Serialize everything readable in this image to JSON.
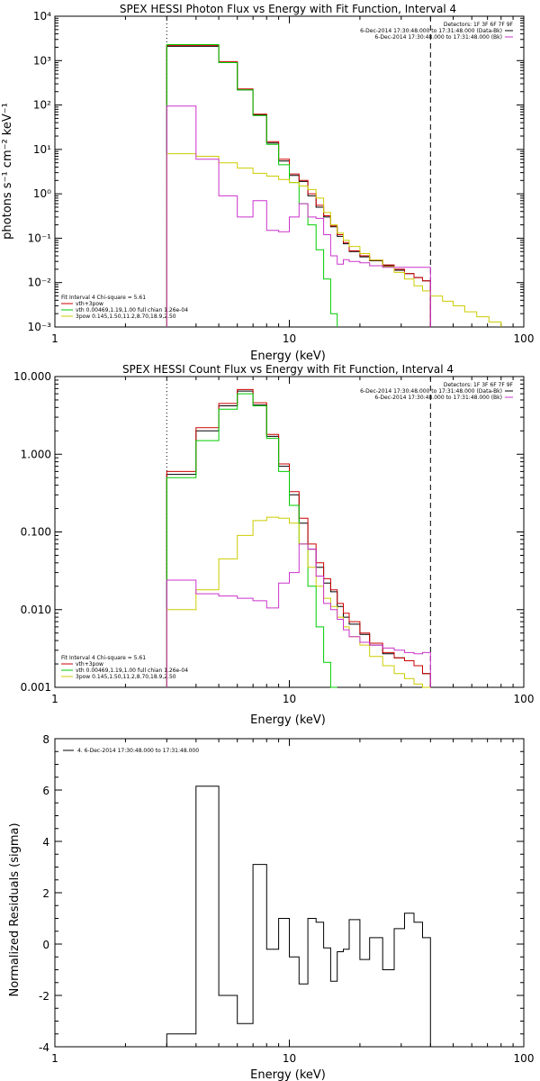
{
  "chart_data": [
    {
      "type": "line",
      "title": "SPEX HESSI Photon Flux vs Energy with Fit Function, Interval 4",
      "xlabel": "Energy (keV)",
      "ylabel": "photons s⁻¹ cm⁻² keV⁻¹",
      "xlog": true,
      "ylog": true,
      "xlim": [
        1,
        100
      ],
      "ylim": [
        0.001,
        10000
      ],
      "xticks": [
        "1",
        "10",
        "100"
      ],
      "yticks": [
        "10⁻³",
        "10⁻²",
        "10⁻¹",
        "10⁰",
        "10¹",
        "10²",
        "10³",
        "10⁴"
      ],
      "top_legend": {
        "detectors": "Detectors: 1F 3F 6F 7F 9F",
        "lines": [
          "6-Dec-2014 17:30:48.000 to 17:31:48.000 (Data-Bk)",
          "6-Dec-2014 17:30:48.000 to 17:31:48.000 (Bk)"
        ],
        "colors": [
          "#000000",
          "#cc33cc"
        ]
      },
      "bottom_legend": {
        "header": "Fit Interval  4    Chi-square = 5.61",
        "lines": [
          "vth+3pow",
          "vth 0.00469,1.19,1.00   full chian 1.26e-04",
          "3pow 0.145,1.50,11.2,8.70,18.9,2.50"
        ],
        "colors": [
          "#cc0000",
          "#00cc00",
          "#cccc00"
        ]
      },
      "vlines": [
        {
          "x": 3,
          "style": "dotted"
        },
        {
          "x": 40,
          "style": "dashed"
        }
      ],
      "edges": [
        3,
        4,
        5,
        6,
        7,
        8,
        9,
        10,
        11,
        12,
        13,
        14,
        15,
        16,
        17,
        18,
        20,
        22,
        25,
        28,
        31,
        34,
        37,
        40,
        45,
        50,
        56,
        63,
        71,
        80
      ],
      "series": [
        {
          "color": "#000000",
          "values": [
            2100,
            2100,
            900,
            220,
            60,
            14,
            5.5,
            2.6,
            1.9,
            0.9,
            0.5,
            0.3,
            0.18,
            0.11,
            0.075,
            0.05,
            0.038,
            0.031,
            0.024,
            0.019,
            0.016,
            0.013,
            0.011
          ]
        },
        {
          "color": "#cc0000",
          "values": [
            2200,
            2200,
            950,
            230,
            62,
            15,
            6,
            2.8,
            2.0,
            1.0,
            0.55,
            0.32,
            0.19,
            0.12,
            0.08,
            0.052,
            0.04,
            0.032,
            0.025,
            0.02,
            0.016,
            0.013,
            0.011
          ]
        },
        {
          "color": "#00cc00",
          "values": [
            2300,
            2300,
            900,
            220,
            58,
            13,
            4.5,
            1.8,
            0.6,
            0.2,
            0.055,
            0.012,
            0.002
          ]
        },
        {
          "color": "#cccc00",
          "values": [
            8,
            7,
            5,
            3.8,
            2.9,
            2.5,
            2.1,
            1.8,
            1.5,
            1.25,
            0.8,
            0.38,
            0.2,
            0.13,
            0.09,
            0.065,
            0.045,
            0.032,
            0.023,
            0.017,
            0.012,
            0.0085,
            0.0065,
            0.005,
            0.0038,
            0.003,
            0.0022,
            0.0017,
            0.0013
          ]
        },
        {
          "color": "#cc33cc",
          "values": [
            95,
            6,
            0.9,
            0.3,
            0.7,
            0.15,
            0.14,
            0.3,
            0.6,
            0.3,
            0.28,
            0.12,
            0.04,
            0.026,
            0.033,
            0.03,
            0.028,
            0.024,
            0.022,
            0.022,
            0.022,
            0.022,
            0.022
          ]
        }
      ]
    },
    {
      "type": "line",
      "title": "SPEX HESSI Count Flux vs Energy with Fit Function, Interval 4",
      "xlabel": "Energy (keV)",
      "ylabel": "",
      "xlog": true,
      "ylog": true,
      "xlim": [
        1,
        100
      ],
      "ylim": [
        0.001,
        10
      ],
      "xticks": [
        "1",
        "10",
        "100"
      ],
      "yticks": [
        "0.001",
        "0.010",
        "0.100",
        "1.000",
        "10.000"
      ],
      "top_legend": {
        "detectors": "Detectors: 1F 3F 6F 7F 9F",
        "lines": [
          "6-Dec-2014 17:30:48.000 to 17:31:48.000 (Data-Bk)",
          "6-Dec-2014 17:30:48.000 to 17:31:48.000 (Bk)"
        ],
        "colors": [
          "#000000",
          "#cc33cc"
        ]
      },
      "bottom_legend": {
        "header": "Fit Interval  4    Chi-square = 5.61",
        "lines": [
          "vth+3pow",
          "vth 0.00469,1.19,1.00   full chian 1.26e-04",
          "3pow 0.145,1.50,11.2,8.70,18.9,2.50"
        ],
        "colors": [
          "#cc0000",
          "#00cc00",
          "#cccc00"
        ]
      },
      "vlines": [
        {
          "x": 3,
          "style": "dotted"
        },
        {
          "x": 40,
          "style": "dashed"
        }
      ],
      "edges": [
        3,
        4,
        5,
        6,
        7,
        8,
        9,
        10,
        11,
        12,
        13,
        14,
        15,
        16,
        17,
        18,
        20,
        22,
        25,
        28,
        31,
        34,
        37,
        40
      ],
      "series": [
        {
          "color": "#000000",
          "values": [
            0.55,
            2.0,
            4.2,
            6.5,
            4.3,
            1.7,
            0.7,
            0.3,
            0.13,
            0.06,
            0.035,
            0.022,
            0.017,
            0.011,
            0.008,
            0.0065,
            0.0048,
            0.0035,
            0.0027,
            0.0024,
            0.0022,
            0.0019,
            0.0015
          ]
        },
        {
          "color": "#cc0000",
          "values": [
            0.6,
            2.2,
            4.5,
            6.8,
            4.6,
            1.8,
            0.75,
            0.33,
            0.15,
            0.07,
            0.04,
            0.025,
            0.018,
            0.012,
            0.009,
            0.007,
            0.005,
            0.0037,
            0.0028,
            0.0024,
            0.0022,
            0.0019,
            0.0015
          ]
        },
        {
          "color": "#00cc00",
          "values": [
            0.5,
            1.5,
            3.8,
            6.0,
            4.2,
            1.6,
            0.6,
            0.22,
            0.07,
            0.02,
            0.006,
            0.0021,
            0.0009
          ]
        },
        {
          "color": "#cccc00",
          "values": [
            0.01,
            0.018,
            0.045,
            0.09,
            0.14,
            0.155,
            0.15,
            0.13,
            0.07,
            0.035,
            0.02,
            0.014,
            0.011,
            0.008,
            0.006,
            0.0045,
            0.0035,
            0.0025,
            0.0019,
            0.0015,
            0.0013,
            0.0011,
            0.0009
          ]
        },
        {
          "color": "#cc33cc",
          "values": [
            0.024,
            0.016,
            0.015,
            0.014,
            0.013,
            0.0105,
            0.022,
            0.03,
            0.07,
            0.06,
            0.027,
            0.012,
            0.01,
            0.0075,
            0.0055,
            0.0045,
            0.0038,
            0.0035,
            0.0032,
            0.003,
            0.0028,
            0.0027,
            0.0028
          ]
        }
      ]
    },
    {
      "type": "line",
      "title": "",
      "xlabel": "Energy (keV)",
      "ylabel": "Normalized Residuals (sigma)",
      "xlog": true,
      "ylog": false,
      "xlim": [
        1,
        100
      ],
      "ylim": [
        -4,
        8
      ],
      "xticks": [
        "1",
        "10",
        "100"
      ],
      "yticks": [
        "-4",
        "-2",
        "0",
        "2",
        "4",
        "6",
        "8"
      ],
      "top_legend": {
        "lines": [
          "4.  6-Dec-2014 17:30:48.000 to 17:31:48.000"
        ],
        "colors": [
          "#000000"
        ]
      },
      "edges": [
        3,
        4,
        5,
        6,
        7,
        8,
        9,
        10,
        11,
        12,
        13,
        14,
        15,
        16,
        17,
        18,
        20,
        22,
        25,
        28,
        31,
        34,
        37,
        40
      ],
      "series": [
        {
          "color": "#000000",
          "values": [
            -3.5,
            6.15,
            -2.0,
            -3.1,
            3.1,
            -0.2,
            1.0,
            -0.5,
            -1.55,
            1.0,
            0.85,
            -0.15,
            -1.45,
            -0.3,
            -0.2,
            0.95,
            -0.6,
            0.25,
            -1.0,
            0.6,
            1.2,
            0.85,
            0.25
          ]
        }
      ]
    }
  ]
}
